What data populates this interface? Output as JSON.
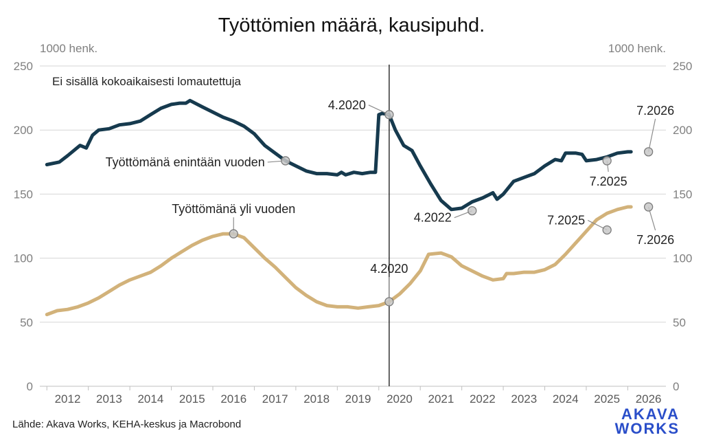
{
  "chart_data": {
    "type": "line",
    "title": "Työttömien määrä, kausipuhd.",
    "left_unit": "1000 henk.",
    "right_unit": "1000 henk.",
    "note": "Ei sisällä kokoaikaisesti lomautettuja",
    "source": "Lähde: Akava Works, KEHA-keskus ja Macrobond",
    "logo": [
      "AKAVA",
      "WORKS"
    ],
    "ylim": [
      0,
      250
    ],
    "yticks": [
      0,
      50,
      100,
      150,
      200,
      250
    ],
    "xlim": [
      2011.83,
      2026.92
    ],
    "xtick_labels": [
      "2012",
      "2013",
      "2014",
      "2015",
      "2016",
      "2017",
      "2018",
      "2019",
      "2020",
      "2021",
      "2022",
      "2023",
      "2024",
      "2025",
      "2026"
    ],
    "grid": true,
    "vline": 2020.25,
    "series": [
      {
        "name": "Työttömänä enintään vuoden",
        "color": "#163a4e",
        "points": [
          [
            2012.0,
            173
          ],
          [
            2012.3,
            175
          ],
          [
            2012.5,
            180
          ],
          [
            2012.8,
            188
          ],
          [
            2012.95,
            186
          ],
          [
            2013.1,
            196
          ],
          [
            2013.25,
            200
          ],
          [
            2013.5,
            201
          ],
          [
            2013.75,
            204
          ],
          [
            2014.0,
            205
          ],
          [
            2014.25,
            207
          ],
          [
            2014.5,
            212
          ],
          [
            2014.75,
            217
          ],
          [
            2015.0,
            220
          ],
          [
            2015.2,
            221
          ],
          [
            2015.35,
            221
          ],
          [
            2015.45,
            223
          ],
          [
            2015.75,
            218
          ],
          [
            2016.0,
            214
          ],
          [
            2016.25,
            210
          ],
          [
            2016.5,
            207
          ],
          [
            2016.75,
            203
          ],
          [
            2017.0,
            197
          ],
          [
            2017.25,
            188
          ],
          [
            2017.5,
            182
          ],
          [
            2017.75,
            176
          ],
          [
            2018.0,
            172
          ],
          [
            2018.25,
            168
          ],
          [
            2018.5,
            166
          ],
          [
            2018.75,
            166
          ],
          [
            2019.0,
            165
          ],
          [
            2019.1,
            167
          ],
          [
            2019.2,
            165
          ],
          [
            2019.4,
            167
          ],
          [
            2019.6,
            166
          ],
          [
            2019.8,
            167
          ],
          [
            2019.92,
            167
          ],
          [
            2020.0,
            212
          ],
          [
            2020.08,
            213
          ],
          [
            2020.25,
            212
          ],
          [
            2020.4,
            200
          ],
          [
            2020.6,
            188
          ],
          [
            2020.8,
            184
          ],
          [
            2021.0,
            172
          ],
          [
            2021.25,
            158
          ],
          [
            2021.5,
            145
          ],
          [
            2021.75,
            138
          ],
          [
            2022.0,
            139
          ],
          [
            2022.25,
            144
          ],
          [
            2022.5,
            147
          ],
          [
            2022.75,
            151
          ],
          [
            2022.85,
            146
          ],
          [
            2023.0,
            150
          ],
          [
            2023.25,
            160
          ],
          [
            2023.5,
            163
          ],
          [
            2023.75,
            166
          ],
          [
            2024.0,
            172
          ],
          [
            2024.25,
            177
          ],
          [
            2024.4,
            176
          ],
          [
            2024.5,
            182
          ],
          [
            2024.75,
            182
          ],
          [
            2024.9,
            181
          ],
          [
            2025.0,
            176
          ],
          [
            2025.25,
            177
          ],
          [
            2025.5,
            179
          ],
          [
            2025.75,
            182
          ],
          [
            2026.0,
            183
          ],
          [
            2026.08,
            183
          ]
        ]
      },
      {
        "name": "Työttömänä yli vuoden",
        "color": "#d2b27a",
        "points": [
          [
            2012.0,
            56
          ],
          [
            2012.25,
            59
          ],
          [
            2012.5,
            60
          ],
          [
            2012.75,
            62
          ],
          [
            2013.0,
            65
          ],
          [
            2013.25,
            69
          ],
          [
            2013.5,
            74
          ],
          [
            2013.75,
            79
          ],
          [
            2014.0,
            83
          ],
          [
            2014.25,
            86
          ],
          [
            2014.5,
            89
          ],
          [
            2014.75,
            94
          ],
          [
            2015.0,
            100
          ],
          [
            2015.25,
            105
          ],
          [
            2015.5,
            110
          ],
          [
            2015.75,
            114
          ],
          [
            2016.0,
            117
          ],
          [
            2016.25,
            119
          ],
          [
            2016.5,
            119
          ],
          [
            2016.75,
            116
          ],
          [
            2017.0,
            108
          ],
          [
            2017.25,
            100
          ],
          [
            2017.5,
            93
          ],
          [
            2017.75,
            85
          ],
          [
            2018.0,
            77
          ],
          [
            2018.25,
            71
          ],
          [
            2018.5,
            66
          ],
          [
            2018.75,
            63
          ],
          [
            2019.0,
            62
          ],
          [
            2019.25,
            62
          ],
          [
            2019.5,
            61
          ],
          [
            2019.75,
            62
          ],
          [
            2020.0,
            63
          ],
          [
            2020.25,
            66
          ],
          [
            2020.5,
            72
          ],
          [
            2020.75,
            80
          ],
          [
            2021.0,
            90
          ],
          [
            2021.2,
            103
          ],
          [
            2021.5,
            104
          ],
          [
            2021.75,
            101
          ],
          [
            2022.0,
            94
          ],
          [
            2022.25,
            90
          ],
          [
            2022.5,
            86
          ],
          [
            2022.75,
            83
          ],
          [
            2023.0,
            84
          ],
          [
            2023.08,
            88
          ],
          [
            2023.25,
            88
          ],
          [
            2023.5,
            89
          ],
          [
            2023.75,
            89
          ],
          [
            2024.0,
            91
          ],
          [
            2024.25,
            95
          ],
          [
            2024.5,
            103
          ],
          [
            2024.75,
            112
          ],
          [
            2025.0,
            121
          ],
          [
            2025.25,
            130
          ],
          [
            2025.5,
            135
          ],
          [
            2025.75,
            138
          ],
          [
            2026.0,
            140
          ],
          [
            2026.08,
            140
          ]
        ]
      }
    ],
    "annotations": [
      {
        "label": "4.2020",
        "x": 2020.25,
        "y": 212,
        "series": "Työttömänä enintään vuoden"
      },
      {
        "label": "Työttömänä enintään vuoden",
        "x": 2017.75,
        "y": 176,
        "series": "Työttömänä enintään vuoden"
      },
      {
        "label": "4.2022",
        "x": 2022.25,
        "y": 137,
        "series": "Työttömänä enintään vuoden"
      },
      {
        "label": "7.2025",
        "x": 2025.5,
        "y": 176,
        "series": "Työttömänä enintään vuoden"
      },
      {
        "label": "7.2026",
        "x": 2026.5,
        "y": 183,
        "series": "Työttömänä enintään vuoden"
      },
      {
        "label": "Työttömänä yli vuoden",
        "x": 2016.5,
        "y": 119,
        "series": "Työttömänä yli vuoden"
      },
      {
        "label": "4.2020",
        "x": 2020.25,
        "y": 66,
        "series": "Työttömänä yli vuoden"
      },
      {
        "label": "7.2025",
        "x": 2025.5,
        "y": 122,
        "series": "Työttömänä yli vuoden"
      },
      {
        "label": "7.2026",
        "x": 2026.5,
        "y": 140,
        "series": "Työttömänä yli vuoden"
      }
    ]
  }
}
